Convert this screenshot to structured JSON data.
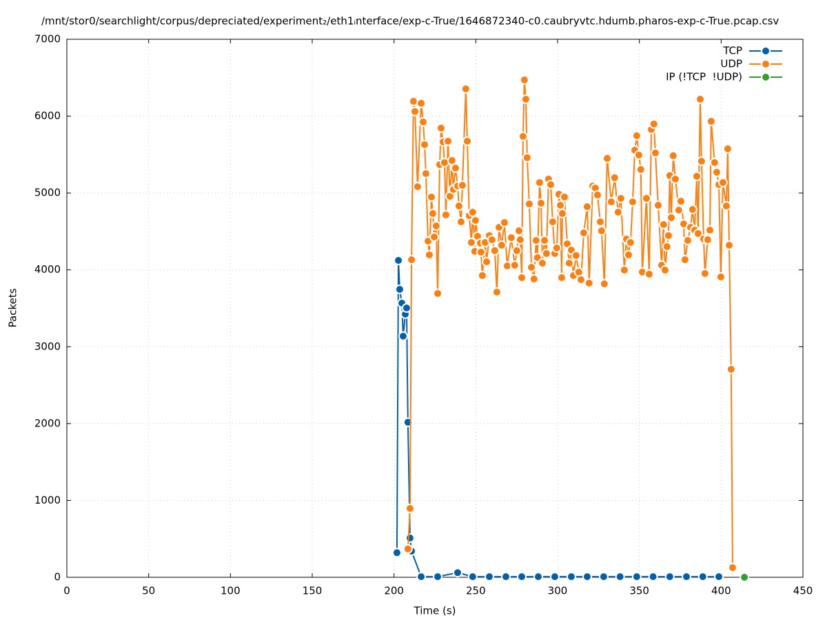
{
  "chart_data": {
    "type": "line",
    "title": "/mnt/stor0/searchlight/corpus/depreciated/experiment₂/eth1ᵢnterface/exp-c-True/1646872340-c0.caubryvtc.hdumb.pharos-exp-c-True.pcap.csv",
    "xlabel": "Time (s)",
    "ylabel": "Packets",
    "xlim": [
      0,
      450
    ],
    "xticks": [
      0,
      50,
      100,
      150,
      200,
      250,
      300,
      350,
      400,
      450
    ],
    "ylim": [
      0,
      7000
    ],
    "yticks": [
      0,
      1000,
      2000,
      3000,
      4000,
      5000,
      6000,
      7000
    ],
    "grid": true,
    "legend": "top-right",
    "series": [
      {
        "name": "TCP",
        "color": "#0060ad",
        "x": [
          201.8,
          202.7,
          203.5,
          204.8,
          205.6,
          206.9,
          207.7,
          208.5,
          209.8,
          210.7,
          216.6,
          226.7,
          238.9,
          248.1,
          258.3,
          268.4,
          278.1,
          288.2,
          298.3,
          308.4,
          318.1,
          328.2,
          338.2,
          348.4,
          358.4,
          368.6,
          378.8,
          388.8,
          398.6
        ],
        "values": [
          320,
          4123,
          3746,
          3567,
          3137,
          3424,
          3504,
          2017,
          511,
          341,
          8,
          8,
          60,
          8,
          8,
          8,
          8,
          8,
          8,
          8,
          8,
          8,
          8,
          8,
          8,
          8,
          8,
          8,
          8
        ]
      },
      {
        "name": "UDP",
        "color": "#ff7f0e",
        "x": [
          208.5,
          209.8,
          210.7,
          211.9,
          212.8,
          214.4,
          216.6,
          217.8,
          218.7,
          219.5,
          220.8,
          221.6,
          222.9,
          223.7,
          224.6,
          225.8,
          226.7,
          227.9,
          228.8,
          230.0,
          230.9,
          231.7,
          233.0,
          234.2,
          235.5,
          236.3,
          237.6,
          238.9,
          239.7,
          241.0,
          241.8,
          243.9,
          244.8,
          246.0,
          247.3,
          248.1,
          249.4,
          249.8,
          251.1,
          252.8,
          253.2,
          254.0,
          255.7,
          256.6,
          258.3,
          259.9,
          261.6,
          262.9,
          264.2,
          265.8,
          267.5,
          269.2,
          271.7,
          273.8,
          275.1,
          276.4,
          277.2,
          278.1,
          278.9,
          279.7,
          280.6,
          281.4,
          282.7,
          284.0,
          285.6,
          286.9,
          287.7,
          289.0,
          289.9,
          290.7,
          292.0,
          293.2,
          294.5,
          295.8,
          297.0,
          298.3,
          299.5,
          300.8,
          301.7,
          302.5,
          302.9,
          304.2,
          305.9,
          307.1,
          308.4,
          309.7,
          311.3,
          313.0,
          314.3,
          316.0,
          318.1,
          319.3,
          321.5,
          323.1,
          324.4,
          326.1,
          326.9,
          328.6,
          330.3,
          332.8,
          334.9,
          337.0,
          338.7,
          340.8,
          342.1,
          343.4,
          344.6,
          345.9,
          347.2,
          348.4,
          349.7,
          350.9,
          351.8,
          354.3,
          356.0,
          357.3,
          358.9,
          359.8,
          361.5,
          363.6,
          364.8,
          365.7,
          366.9,
          367.8,
          368.6,
          369.5,
          370.7,
          372.0,
          374.1,
          375.4,
          377.1,
          377.9,
          379.6,
          381.3,
          382.5,
          383.8,
          385.1,
          385.9,
          387.2,
          388.0,
          389.3,
          390.1,
          391.8,
          393.1,
          393.9,
          396.0,
          397.3,
          398.6,
          399.8,
          401.1,
          403.2,
          404.0,
          404.9,
          406.1,
          407.0
        ],
        "values": [
          369,
          896,
          4132,
          6193,
          6060,
          5082,
          6167,
          5925,
          5629,
          5252,
          4374,
          4195,
          4948,
          4733,
          4428,
          4571,
          3693,
          5369,
          5844,
          5665,
          5396,
          4715,
          5674,
          4957,
          5423,
          5046,
          5324,
          5091,
          4831,
          4625,
          5100,
          6355,
          5674,
          4706,
          4356,
          4750,
          4240,
          4643,
          4437,
          4347,
          4231,
          3926,
          4356,
          4105,
          4446,
          4392,
          4249,
          3711,
          4553,
          4320,
          4616,
          4051,
          4419,
          4060,
          4249,
          4508,
          4392,
          3899,
          5736,
          6471,
          6220,
          5459,
          4858,
          4033,
          3881,
          4383,
          4159,
          5136,
          4867,
          4087,
          4383,
          4213,
          5181,
          5109,
          4625,
          4213,
          4284,
          4983,
          4840,
          3899,
          4733,
          4948,
          4338,
          4087,
          4257,
          3926,
          4186,
          3971,
          3872,
          4481,
          4822,
          3827,
          5091,
          5064,
          4974,
          4625,
          4508,
          3818,
          5450,
          4885,
          5199,
          4750,
          4930,
          3997,
          4401,
          4195,
          4356,
          4885,
          5557,
          5745,
          5494,
          5306,
          3971,
          4930,
          3944,
          5826,
          5898,
          5521,
          4840,
          4060,
          4589,
          3997,
          4302,
          4446,
          5226,
          4679,
          5485,
          5181,
          4777,
          4894,
          4598,
          4132,
          4383,
          4553,
          4786,
          4517,
          5217,
          4472,
          6220,
          5414,
          4401,
          3953,
          4392,
          4517,
          5933,
          5396,
          5270,
          5109,
          3908,
          5136,
          4831,
          5575,
          4320,
          2707,
          125
        ]
      },
      {
        "name": "IP (!TCP  !UDP)",
        "color": "#2ca02c",
        "x": [
          414.2
        ],
        "values": [
          0
        ]
      }
    ]
  }
}
